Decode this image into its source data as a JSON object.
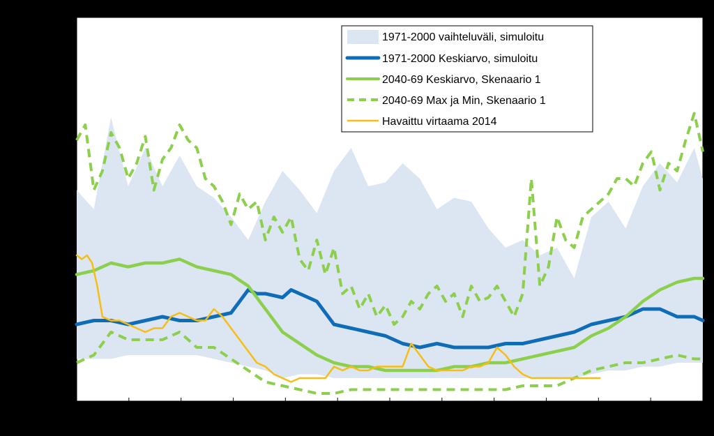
{
  "chart_data": {
    "type": "line",
    "title": "",
    "xlabel": "",
    "ylabel": "",
    "x_range": [
      0,
      365
    ],
    "y_range": [
      0,
      100
    ],
    "legend_placement": "top-right",
    "colors": {
      "range_band": "#dce6f2",
      "mean_1971_2000": "#0f6db8",
      "mean_2040_69": "#8ccf4d",
      "max_min_2040_69": "#8ccf4d",
      "observed_2014": "#f6bd16"
    },
    "legend": [
      {
        "label": "1971-2000 vaihteluväli, simuloitu",
        "style": "band"
      },
      {
        "label": "1971-2000 Keskiarvo, simuloitu",
        "style": "line"
      },
      {
        "label": "2040-69 Keskiarvo, Skenaario 1",
        "style": "line"
      },
      {
        "label": "2040-69 Max ja Min, Skenaario 1",
        "style": "dashed"
      },
      {
        "label": "Havaittu virtaama 2014",
        "style": "line"
      }
    ],
    "series": [
      {
        "name": "1971-2000 vaihteluväli, simuloitu",
        "kind": "band",
        "x": [
          0,
          10,
          20,
          30,
          40,
          50,
          60,
          70,
          80,
          90,
          100,
          110,
          120,
          130,
          140,
          150,
          160,
          170,
          180,
          190,
          200,
          210,
          220,
          230,
          240,
          250,
          260,
          270,
          280,
          290,
          300,
          310,
          320,
          330,
          340,
          350,
          360,
          365
        ],
        "upper": [
          55,
          50,
          74,
          56,
          66,
          56,
          64,
          56,
          53,
          48,
          42,
          52,
          60,
          55,
          49,
          60,
          66,
          56,
          57,
          62,
          58,
          50,
          53,
          52,
          45,
          40,
          42,
          38,
          40,
          32,
          48,
          52,
          45,
          56,
          62,
          57,
          66,
          58
        ],
        "lower": [
          11,
          11,
          11,
          12,
          12,
          12,
          12,
          12,
          11,
          10,
          9,
          8,
          6,
          7,
          7,
          6,
          6,
          6,
          6,
          6,
          6,
          6,
          6,
          6,
          6,
          6,
          6,
          6,
          6,
          6,
          7,
          8,
          8,
          9,
          9,
          10,
          10,
          10
        ]
      },
      {
        "name": "1971-2000 Keskiarvo, simuloitu",
        "kind": "line",
        "x": [
          0,
          10,
          20,
          30,
          40,
          50,
          60,
          70,
          80,
          90,
          100,
          105,
          110,
          120,
          125,
          130,
          140,
          150,
          160,
          170,
          180,
          190,
          200,
          210,
          220,
          230,
          240,
          250,
          260,
          270,
          280,
          290,
          300,
          310,
          320,
          330,
          340,
          350,
          360,
          365
        ],
        "y": [
          20,
          21,
          21,
          20,
          21,
          22,
          21,
          21,
          22,
          23,
          29,
          28,
          28,
          27,
          29,
          28,
          26,
          20,
          19,
          18,
          17,
          15,
          14,
          15,
          14,
          14,
          14,
          15,
          15,
          16,
          17,
          18,
          20,
          21,
          22,
          24,
          24,
          22,
          22,
          21
        ]
      },
      {
        "name": "2040-69 Keskiarvo, Skenaario 1",
        "kind": "line",
        "x": [
          0,
          10,
          20,
          30,
          40,
          50,
          60,
          70,
          80,
          90,
          100,
          110,
          120,
          130,
          140,
          150,
          160,
          170,
          180,
          190,
          200,
          210,
          220,
          230,
          240,
          250,
          260,
          270,
          280,
          290,
          300,
          310,
          320,
          330,
          340,
          350,
          360,
          365
        ],
        "y": [
          33,
          34,
          36,
          35,
          36,
          36,
          37,
          35,
          34,
          33,
          30,
          24,
          18,
          15,
          12,
          10,
          9,
          9,
          8,
          8,
          8,
          8,
          9,
          9,
          10,
          10,
          11,
          12,
          13,
          14,
          17,
          19,
          22,
          26,
          29,
          31,
          32,
          32
        ]
      },
      {
        "name": "2040-69 Max, Skenaario 1",
        "kind": "dashed",
        "x": [
          0,
          5,
          10,
          15,
          20,
          25,
          30,
          35,
          40,
          45,
          50,
          55,
          60,
          65,
          70,
          75,
          80,
          85,
          90,
          95,
          100,
          105,
          110,
          115,
          120,
          125,
          130,
          135,
          140,
          145,
          150,
          155,
          160,
          165,
          170,
          175,
          180,
          185,
          190,
          195,
          200,
          205,
          210,
          215,
          220,
          225,
          230,
          235,
          240,
          245,
          250,
          255,
          260,
          265,
          270,
          275,
          280,
          285,
          290,
          295,
          300,
          305,
          310,
          315,
          320,
          325,
          330,
          335,
          340,
          345,
          350,
          355,
          360,
          365
        ],
        "y": [
          68,
          72,
          55,
          60,
          70,
          66,
          58,
          62,
          69,
          55,
          63,
          66,
          72,
          68,
          66,
          58,
          56,
          52,
          46,
          54,
          50,
          52,
          42,
          48,
          44,
          48,
          37,
          34,
          42,
          33,
          40,
          28,
          30,
          24,
          28,
          22,
          25,
          20,
          22,
          26,
          24,
          28,
          30,
          26,
          28,
          22,
          30,
          26,
          27,
          30,
          26,
          22,
          28,
          58,
          30,
          35,
          48,
          42,
          40,
          48,
          50,
          52,
          54,
          58,
          58,
          56,
          62,
          65,
          55,
          62,
          60,
          68,
          75,
          65
        ]
      },
      {
        "name": "2040-69 Min, Skenaario 1",
        "kind": "dashed",
        "x": [
          0,
          10,
          20,
          30,
          40,
          50,
          60,
          70,
          80,
          90,
          100,
          110,
          120,
          130,
          140,
          150,
          160,
          170,
          180,
          190,
          200,
          210,
          220,
          230,
          240,
          250,
          260,
          270,
          280,
          290,
          300,
          310,
          320,
          330,
          340,
          350,
          360,
          365
        ],
        "y": [
          10,
          12,
          18,
          16,
          16,
          16,
          18,
          14,
          14,
          11,
          8,
          5,
          4,
          3,
          2,
          2,
          3,
          3,
          3,
          3,
          3,
          3,
          3,
          3,
          3,
          3,
          4,
          4,
          4,
          6,
          8,
          9,
          10,
          10,
          11,
          12,
          11,
          11
        ]
      },
      {
        "name": "Havaittu virtaama 2014",
        "kind": "line",
        "x": [
          0,
          3,
          6,
          9,
          12,
          15,
          20,
          25,
          30,
          35,
          40,
          45,
          50,
          55,
          60,
          65,
          70,
          75,
          80,
          85,
          90,
          95,
          100,
          105,
          110,
          115,
          120,
          125,
          130,
          135,
          140,
          145,
          150,
          155,
          160,
          165,
          170,
          175,
          180,
          185,
          190,
          195,
          200,
          205,
          210,
          215,
          220,
          225,
          230,
          235,
          240,
          245,
          250,
          255,
          260,
          265,
          270,
          275,
          280,
          285,
          290,
          295,
          300,
          305
        ],
        "y": [
          38,
          37,
          38,
          36,
          30,
          22,
          21,
          21,
          20,
          19,
          18,
          19,
          19,
          22,
          23,
          22,
          21,
          21,
          24,
          22,
          19,
          16,
          13,
          10,
          9,
          7,
          6,
          5,
          6,
          6,
          6,
          6,
          9,
          8,
          9,
          8,
          8,
          9,
          9,
          9,
          9,
          15,
          12,
          9,
          8,
          8,
          8,
          8,
          9,
          9,
          10,
          14,
          12,
          9,
          7,
          6,
          6,
          6,
          6,
          6,
          6,
          6,
          6,
          6
        ]
      }
    ]
  }
}
